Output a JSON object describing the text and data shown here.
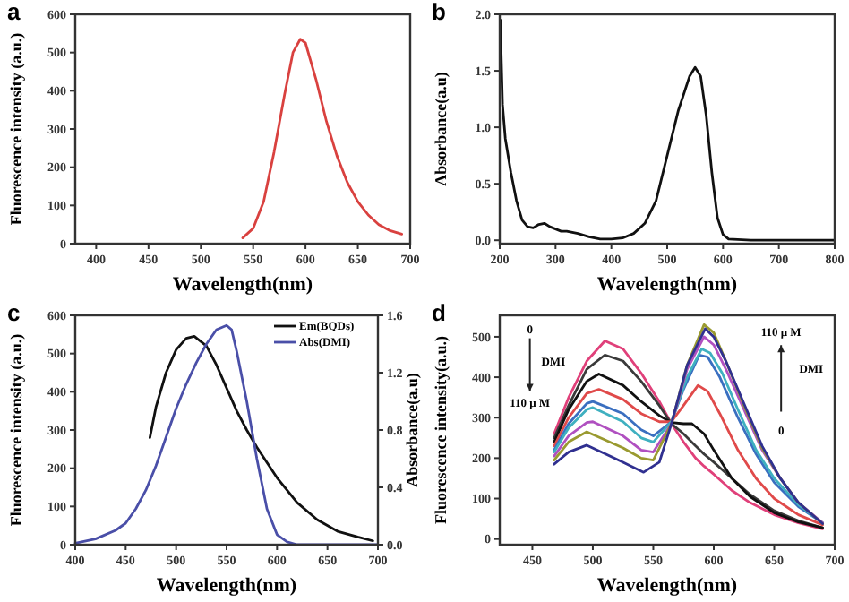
{
  "chart_data": [
    {
      "type": "line",
      "title": "a",
      "xlabel": "Wavelength(nm)",
      "ylabel": "Fluorescence intensity (a.u.)",
      "xlim": [
        380,
        700
      ],
      "xticks": [
        400,
        450,
        500,
        550,
        600,
        650,
        700
      ],
      "ylim": [
        0,
        600
      ],
      "yticks": [
        0,
        100,
        200,
        300,
        400,
        500,
        600
      ],
      "series": [
        {
          "color": "#d9413f",
          "x": [
            540,
            550,
            560,
            570,
            580,
            588,
            595,
            600,
            610,
            620,
            630,
            640,
            650,
            660,
            670,
            680,
            692
          ],
          "values": [
            15,
            40,
            110,
            240,
            390,
            500,
            535,
            525,
            430,
            320,
            230,
            160,
            110,
            75,
            50,
            35,
            25
          ]
        }
      ]
    },
    {
      "type": "line",
      "title": "b",
      "xlabel": "Wavelength(nm)",
      "ylabel": "Absorbance(a.u)",
      "xlim": [
        200,
        800
      ],
      "xticks": [
        200,
        300,
        400,
        500,
        600,
        700,
        800
      ],
      "ylim": [
        -0.03,
        2.0
      ],
      "yticks": [
        {
          "value": 0,
          "label": "0.0"
        },
        {
          "value": 0.5,
          "label": "0.5"
        },
        {
          "value": 1,
          "label": "1.0"
        },
        {
          "value": 1.5,
          "label": "1.5"
        },
        {
          "value": 2,
          "label": "2.0"
        }
      ],
      "series": [
        {
          "color": "#111111",
          "x": [
            201,
            205,
            210,
            220,
            230,
            240,
            250,
            260,
            270,
            280,
            290,
            300,
            310,
            320,
            340,
            360,
            380,
            400,
            420,
            440,
            460,
            480,
            500,
            520,
            540,
            550,
            560,
            570,
            580,
            590,
            600,
            610,
            650,
            700,
            800
          ],
          "values": [
            1.95,
            1.2,
            0.9,
            0.6,
            0.35,
            0.18,
            0.12,
            0.11,
            0.14,
            0.15,
            0.12,
            0.1,
            0.08,
            0.08,
            0.06,
            0.03,
            0.01,
            0.01,
            0.02,
            0.06,
            0.15,
            0.35,
            0.75,
            1.15,
            1.45,
            1.53,
            1.45,
            1.1,
            0.6,
            0.2,
            0.05,
            0.01,
            0,
            0,
            0
          ]
        }
      ]
    },
    {
      "type": "line",
      "title": "c",
      "xlabel": "Wavelength(nm)",
      "ylabel": "Fluorescence intensity (a.u.)",
      "y2label": "Absorbance(a.u)",
      "legend": "top right",
      "xlim": [
        400,
        700
      ],
      "xticks": [
        400,
        450,
        500,
        550,
        600,
        650,
        700
      ],
      "ylim": [
        0,
        600
      ],
      "yticks": [
        0,
        100,
        200,
        300,
        400,
        500,
        600
      ],
      "y2lim": [
        0,
        1.6
      ],
      "y2ticks": [
        {
          "value": 0,
          "label": "0.0"
        },
        {
          "value": 0.4,
          "label": "0.4"
        },
        {
          "value": 0.8,
          "label": "0.8"
        },
        {
          "value": 1.2,
          "label": "1.2"
        },
        {
          "value": 1.6,
          "label": "1.6"
        }
      ],
      "series": [
        {
          "name": "Em(BQDs)",
          "color": "#111111",
          "x": [
            474,
            480,
            490,
            500,
            510,
            518,
            530,
            540,
            550,
            560,
            570,
            580,
            590,
            600,
            620,
            640,
            660,
            680,
            695
          ],
          "values": [
            280,
            360,
            450,
            510,
            540,
            545,
            520,
            470,
            410,
            350,
            300,
            255,
            215,
            175,
            110,
            65,
            35,
            20,
            10
          ]
        },
        {
          "name": "Abs(DMI)",
          "color": "#4a4fa8",
          "axis": "y2",
          "x": [
            400,
            420,
            440,
            450,
            460,
            470,
            480,
            490,
            500,
            510,
            520,
            530,
            540,
            550,
            555,
            560,
            570,
            580,
            590,
            600,
            610,
            620,
            700
          ],
          "values": [
            0.01,
            0.04,
            0.1,
            0.15,
            0.25,
            0.38,
            0.55,
            0.75,
            0.95,
            1.12,
            1.27,
            1.4,
            1.5,
            1.53,
            1.5,
            1.35,
            1,
            0.6,
            0.25,
            0.07,
            0.02,
            0,
            0
          ]
        }
      ]
    },
    {
      "type": "line",
      "title": "d",
      "xlabel": "Wavelength(nm)",
      "ylabel": "Fluorescence intensity(a.u.)",
      "xlim": [
        423,
        700
      ],
      "xticks": [
        450,
        500,
        550,
        600,
        650,
        700
      ],
      "ylim": [
        -14,
        553
      ],
      "yticks": [
        0,
        100,
        200,
        300,
        400,
        500
      ],
      "annotations": [
        "0",
        "DMI",
        "110 μ M",
        "110 μ M",
        "DMI",
        "0"
      ],
      "series": [
        {
          "color": "#e0407a",
          "x": [
            468,
            480,
            495,
            510,
            525,
            540,
            555,
            565,
            575,
            585,
            592,
            600,
            615,
            630,
            650,
            670,
            690
          ],
          "values": [
            260,
            350,
            440,
            490,
            470,
            410,
            340,
            285,
            240,
            200,
            180,
            160,
            120,
            90,
            60,
            40,
            25
          ]
        },
        {
          "color": "#3a3a3a",
          "x": [
            468,
            480,
            495,
            510,
            525,
            540,
            555,
            565,
            575,
            585,
            592,
            600,
            615,
            630,
            650,
            670,
            690
          ],
          "values": [
            250,
            330,
            420,
            455,
            440,
            390,
            330,
            285,
            260,
            230,
            210,
            190,
            150,
            110,
            70,
            45,
            28
          ]
        },
        {
          "color": "#111111",
          "x": [
            468,
            480,
            495,
            505,
            525,
            540,
            555,
            565,
            575,
            582,
            592,
            600,
            615,
            630,
            650,
            670,
            690
          ],
          "values": [
            240,
            320,
            390,
            408,
            380,
            340,
            305,
            288,
            285,
            285,
            260,
            220,
            150,
            105,
            65,
            42,
            28
          ]
        },
        {
          "color": "#e04a4a",
          "x": [
            468,
            480,
            495,
            505,
            525,
            540,
            555,
            565,
            575,
            587,
            595,
            605,
            620,
            635,
            650,
            670,
            690
          ],
          "values": [
            230,
            300,
            360,
            370,
            345,
            310,
            290,
            290,
            330,
            380,
            365,
            310,
            220,
            150,
            100,
            60,
            35
          ]
        },
        {
          "color": "#3a6fc0",
          "x": [
            468,
            480,
            495,
            500,
            525,
            540,
            550,
            565,
            575,
            588,
            595,
            605,
            620,
            635,
            650,
            670,
            690
          ],
          "values": [
            220,
            285,
            335,
            340,
            310,
            270,
            255,
            290,
            370,
            455,
            450,
            400,
            300,
            210,
            140,
            80,
            40
          ]
        },
        {
          "color": "#3fb0c0",
          "x": [
            468,
            480,
            495,
            500,
            525,
            540,
            550,
            565,
            578,
            590,
            597,
            607,
            620,
            635,
            650,
            670,
            690
          ],
          "values": [
            215,
            275,
            320,
            325,
            290,
            250,
            240,
            290,
            400,
            470,
            460,
            410,
            320,
            220,
            150,
            85,
            40
          ]
        },
        {
          "color": "#b050c0",
          "x": [
            468,
            480,
            495,
            500,
            525,
            540,
            550,
            565,
            578,
            592,
            600,
            610,
            625,
            640,
            655,
            670,
            690
          ],
          "values": [
            205,
            255,
            288,
            290,
            255,
            220,
            215,
            285,
            420,
            500,
            480,
            420,
            320,
            220,
            150,
            90,
            40
          ]
        },
        {
          "color": "#9a9a30",
          "x": [
            468,
            480,
            495,
            525,
            540,
            550,
            565,
            578,
            592,
            600,
            610,
            625,
            640,
            655,
            670,
            690
          ],
          "values": [
            195,
            240,
            265,
            225,
            200,
            195,
            285,
            430,
            530,
            510,
            440,
            330,
            225,
            150,
            90,
            38
          ]
        },
        {
          "color": "#303090",
          "x": [
            468,
            480,
            495,
            525,
            542,
            555,
            565,
            578,
            593,
            600,
            610,
            625,
            640,
            655,
            670,
            690
          ],
          "values": [
            185,
            215,
            232,
            190,
            165,
            190,
            285,
            430,
            520,
            500,
            440,
            335,
            230,
            150,
            90,
            38
          ]
        }
      ]
    }
  ]
}
